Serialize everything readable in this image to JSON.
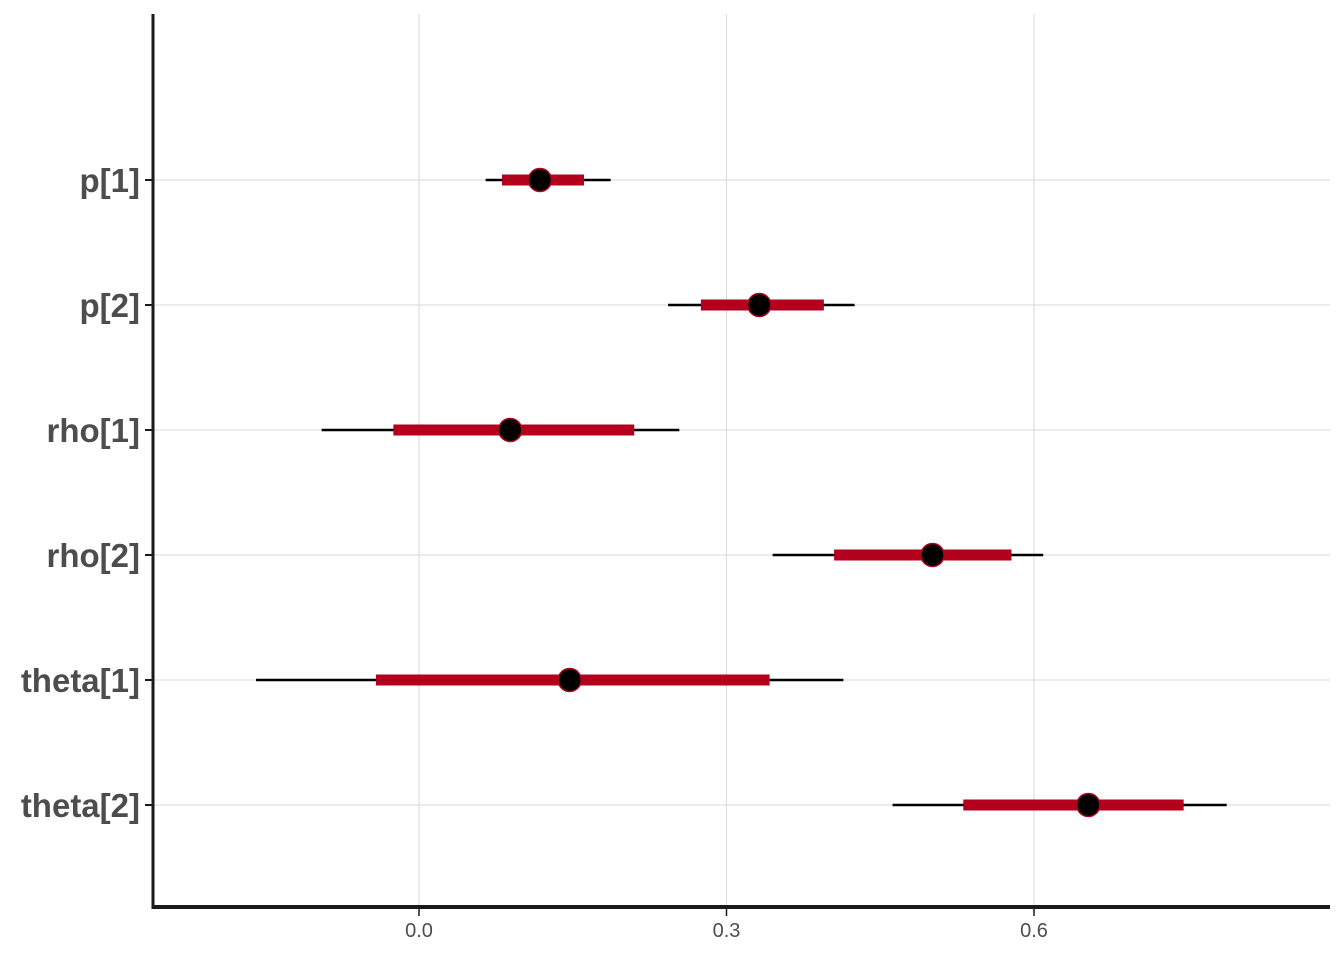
{
  "chart_data": {
    "type": "interval",
    "title": "",
    "xlabel": "",
    "ylabel": "",
    "grid": true,
    "legend": "none",
    "xlim": [
      -0.13,
      0.89
    ],
    "x_ticks": [
      0.0,
      0.3,
      0.6
    ],
    "x_tick_labels": [
      "0.0",
      "0.3",
      "0.6"
    ],
    "colors": {
      "inner_interval": "#b2001d",
      "outer_interval": "#000000",
      "point_fill": "#000000",
      "point_stroke": "#b2001d",
      "grid": "#d9d9d9",
      "axis": "#1a1a1a",
      "text": "#4d4d4d"
    },
    "parameters": [
      {
        "label": "p[1]",
        "median": 0.118,
        "inner": [
          0.081,
          0.161
        ],
        "outer": [
          0.065,
          0.187
        ]
      },
      {
        "label": "p[2]",
        "median": 0.332,
        "inner": [
          0.275,
          0.395
        ],
        "outer": [
          0.243,
          0.425
        ]
      },
      {
        "label": "rho[1]",
        "median": 0.089,
        "inner": [
          -0.025,
          0.21
        ],
        "outer": [
          -0.095,
          0.254
        ]
      },
      {
        "label": "rho[2]",
        "median": 0.501,
        "inner": [
          0.405,
          0.578
        ],
        "outer": [
          0.345,
          0.609
        ]
      },
      {
        "label": "theta[1]",
        "median": 0.147,
        "inner": [
          -0.042,
          0.342
        ],
        "outer": [
          -0.159,
          0.414
        ]
      },
      {
        "label": "theta[2]",
        "median": 0.653,
        "inner": [
          0.531,
          0.746
        ],
        "outer": [
          0.462,
          0.788
        ]
      }
    ]
  }
}
